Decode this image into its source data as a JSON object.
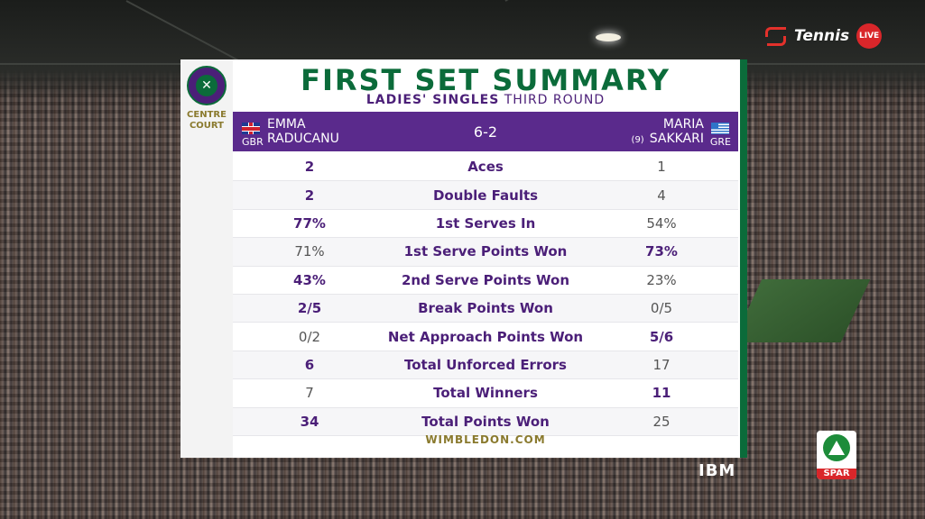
{
  "broadcaster": {
    "name": "Tennis",
    "live_label": "LIVE"
  },
  "panel": {
    "venue_line1": "CENTRE",
    "venue_line2": "COURT",
    "title": "FIRST SET SUMMARY",
    "subtitle_bold": "LADIES' SINGLES",
    "subtitle_rest": "THIRD ROUND",
    "footer": "WIMBLEDON.COM"
  },
  "players": {
    "left": {
      "first": "EMMA",
      "last": "RADUCANU",
      "country": "GBR"
    },
    "right": {
      "first": "MARIA",
      "last": "SAKKARI",
      "seed": "(9)",
      "country": "GRE"
    },
    "score": "6-2"
  },
  "stats": [
    {
      "label": "Aces",
      "left": "2",
      "right": "1",
      "leader": "left"
    },
    {
      "label": "Double Faults",
      "left": "2",
      "right": "4",
      "leader": "left"
    },
    {
      "label": "1st Serves In",
      "left": "77%",
      "right": "54%",
      "leader": "left"
    },
    {
      "label": "1st Serve Points Won",
      "left": "71%",
      "right": "73%",
      "leader": "right"
    },
    {
      "label": "2nd Serve Points Won",
      "left": "43%",
      "right": "23%",
      "leader": "left"
    },
    {
      "label": "Break Points Won",
      "left": "2/5",
      "right": "0/5",
      "leader": "left"
    },
    {
      "label": "Net Approach Points Won",
      "left": "0/2",
      "right": "5/6",
      "leader": "right"
    },
    {
      "label": "Total Unforced Errors",
      "left": "6",
      "right": "17",
      "leader": "left"
    },
    {
      "label": "Total Winners",
      "left": "7",
      "right": "11",
      "leader": "right"
    },
    {
      "label": "Total Points Won",
      "left": "34",
      "right": "25",
      "leader": "left"
    }
  ],
  "sponsors": {
    "ibm": "IBM",
    "spar": "SPAR"
  },
  "colors": {
    "purple": "#4b1f78",
    "green": "#0b6b3a",
    "gold": "#8a7a2e"
  }
}
